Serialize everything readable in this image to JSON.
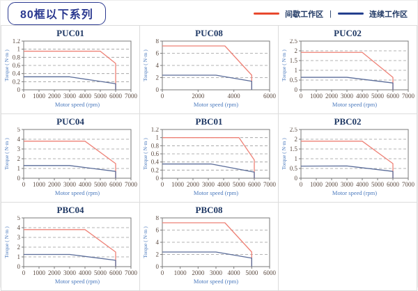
{
  "header": {
    "series_title": "80框以下系列",
    "legend_separator": "|",
    "legend": [
      {
        "label": "间歇工作区",
        "color": "#e8492e"
      },
      {
        "label": "连续工作区",
        "color": "#24408e"
      }
    ]
  },
  "palette": {
    "intermittent_line": "#ee8176",
    "continuous_line": "#5a6c99",
    "plot_border": "#7a7a7a",
    "gridline": "#9a9a9a",
    "tick_label": "#5b4a40",
    "axis_label": "#4a79bd",
    "title": "#1f3864"
  },
  "chart_data": [
    {
      "type": "line",
      "title": "PUC01",
      "xlabel": "Motor speed (rpm)",
      "ylabel": "Torque ( N·m )",
      "xlim": [
        0,
        7000
      ],
      "xstep": 1000,
      "ylim": [
        0,
        1.2
      ],
      "ystep": 0.2,
      "grid": "horizontal-dashed",
      "legend_position": "none",
      "series": [
        {
          "name": "间歇工作区",
          "color": "#ee8176",
          "points": [
            [
              0,
              0.95
            ],
            [
              5000,
              0.95
            ],
            [
              6000,
              0.65
            ],
            [
              6000,
              0
            ]
          ]
        },
        {
          "name": "连续工作区",
          "color": "#5a6c99",
          "points": [
            [
              0,
              0.32
            ],
            [
              3000,
              0.32
            ],
            [
              6000,
              0.15
            ],
            [
              6000,
              0
            ]
          ]
        }
      ]
    },
    {
      "type": "line",
      "title": "PUC08",
      "xlabel": "Motor speed (rpm)",
      "ylabel": "Torque ( N·m )",
      "xlim": [
        0,
        6000
      ],
      "xstep": 2000,
      "ylim": [
        0,
        8
      ],
      "ystep": 2,
      "grid": "horizontal-dashed",
      "legend_position": "none",
      "series": [
        {
          "name": "间歇工作区",
          "color": "#ee8176",
          "points": [
            [
              0,
              7.2
            ],
            [
              3500,
              7.2
            ],
            [
              5000,
              2.4
            ],
            [
              5000,
              0
            ]
          ]
        },
        {
          "name": "连续工作区",
          "color": "#5a6c99",
          "points": [
            [
              0,
              2.4
            ],
            [
              3000,
              2.4
            ],
            [
              5000,
              1.4
            ],
            [
              5000,
              0
            ]
          ]
        }
      ]
    },
    {
      "type": "line",
      "title": "PUC02",
      "xlabel": "Motor speed (rpm)",
      "ylabel": "Torque ( N·m )",
      "xlim": [
        0,
        7000
      ],
      "xstep": 1000,
      "ylim": [
        0,
        2.5
      ],
      "ystep": 0.5,
      "grid": "horizontal-dashed",
      "legend_position": "none",
      "series": [
        {
          "name": "间歇工作区",
          "color": "#ee8176",
          "points": [
            [
              0,
              1.92
            ],
            [
              4000,
              1.92
            ],
            [
              6000,
              0.64
            ],
            [
              6000,
              0
            ]
          ]
        },
        {
          "name": "连续工作区",
          "color": "#5a6c99",
          "points": [
            [
              0,
              0.64
            ],
            [
              3000,
              0.64
            ],
            [
              6000,
              0.35
            ],
            [
              6000,
              0
            ]
          ]
        }
      ]
    },
    {
      "type": "line",
      "title": "PUC04",
      "xlabel": "Motor speed (rpm)",
      "ylabel": "Torque ( N·m )",
      "xlim": [
        0,
        7000
      ],
      "xstep": 1000,
      "ylim": [
        0,
        5
      ],
      "ystep": 1,
      "grid": "horizontal-dashed",
      "legend_position": "none",
      "series": [
        {
          "name": "间歇工作区",
          "color": "#ee8176",
          "points": [
            [
              0,
              3.8
            ],
            [
              4000,
              3.8
            ],
            [
              6000,
              1.5
            ],
            [
              6000,
              0
            ]
          ]
        },
        {
          "name": "连续工作区",
          "color": "#5a6c99",
          "points": [
            [
              0,
              1.3
            ],
            [
              3000,
              1.3
            ],
            [
              6000,
              0.7
            ],
            [
              6000,
              0
            ]
          ]
        }
      ]
    },
    {
      "type": "line",
      "title": "PBC01",
      "xlabel": "Motor speed (rpm)",
      "ylabel": "Torque ( N·m )",
      "xlim": [
        0,
        7000
      ],
      "xstep": 1000,
      "ylim": [
        0,
        1.2
      ],
      "ystep": 0.2,
      "grid": "horizontal-dashed",
      "legend_position": "none",
      "series": [
        {
          "name": "间歇工作区",
          "color": "#ee8176",
          "points": [
            [
              0,
              1.0
            ],
            [
              5000,
              1.0
            ],
            [
              6000,
              0.45
            ],
            [
              6000,
              0
            ]
          ]
        },
        {
          "name": "连续工作区",
          "color": "#5a6c99",
          "points": [
            [
              0,
              0.35
            ],
            [
              3200,
              0.35
            ],
            [
              6000,
              0.15
            ],
            [
              6000,
              0
            ]
          ]
        }
      ]
    },
    {
      "type": "line",
      "title": "PBC02",
      "xlabel": "Motor speed (rpm)",
      "ylabel": "Torque ( N·m )",
      "xlim": [
        0,
        7000
      ],
      "xstep": 1000,
      "ylim": [
        0,
        2.5
      ],
      "ystep": 0.5,
      "grid": "horizontal-dashed",
      "legend_position": "none",
      "series": [
        {
          "name": "间歇工作区",
          "color": "#ee8176",
          "points": [
            [
              0,
              1.9
            ],
            [
              4000,
              1.9
            ],
            [
              6000,
              0.75
            ],
            [
              6000,
              0
            ]
          ]
        },
        {
          "name": "连续工作区",
          "color": "#5a6c99",
          "points": [
            [
              0,
              0.62
            ],
            [
              3000,
              0.63
            ],
            [
              6000,
              0.35
            ],
            [
              6000,
              0
            ]
          ]
        }
      ]
    },
    {
      "type": "line",
      "title": "PBC04",
      "xlabel": "Motor speed (rpm)",
      "ylabel": "Torque ( N·m )",
      "xlim": [
        0,
        7000
      ],
      "xstep": 1000,
      "ylim": [
        0,
        5
      ],
      "ystep": 1,
      "grid": "horizontal-dashed",
      "legend_position": "none",
      "series": [
        {
          "name": "间歇工作区",
          "color": "#ee8176",
          "points": [
            [
              0,
              3.8
            ],
            [
              4000,
              3.8
            ],
            [
              6000,
              1.5
            ],
            [
              6000,
              0
            ]
          ]
        },
        {
          "name": "连续工作区",
          "color": "#5a6c99",
          "points": [
            [
              0,
              1.25
            ],
            [
              3000,
              1.25
            ],
            [
              6000,
              0.65
            ],
            [
              6000,
              0
            ]
          ]
        }
      ]
    },
    {
      "type": "line",
      "title": "PBC08",
      "xlabel": "Motor speed (rpm)",
      "ylabel": "Torque ( N·m )",
      "xlim": [
        0,
        6000
      ],
      "xstep": 1000,
      "ylim": [
        0,
        8
      ],
      "ystep": 2,
      "grid": "horizontal-dashed",
      "legend_position": "none",
      "series": [
        {
          "name": "间歇工作区",
          "color": "#ee8176",
          "points": [
            [
              0,
              7.2
            ],
            [
              3500,
              7.2
            ],
            [
              5000,
              2.4
            ],
            [
              5000,
              0
            ]
          ]
        },
        {
          "name": "连续工作区",
          "color": "#5a6c99",
          "points": [
            [
              0,
              2.4
            ],
            [
              3000,
              2.4
            ],
            [
              5000,
              1.4
            ],
            [
              5000,
              0
            ]
          ]
        }
      ]
    }
  ]
}
